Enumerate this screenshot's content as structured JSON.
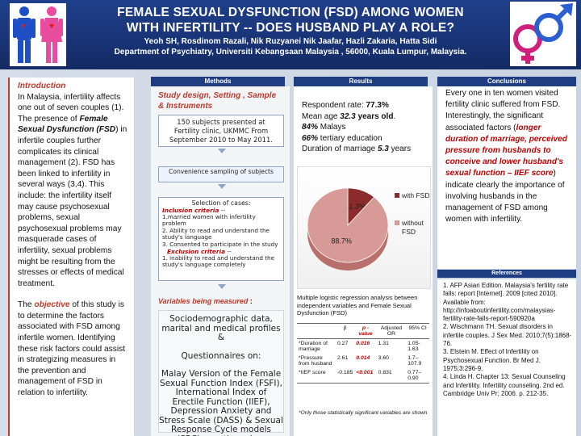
{
  "header": {
    "title_line1": "FEMALE  SEXUAL  DYSFUNCTION (FSD) AMONG  WOMEN",
    "title_line2": "WITH  INFERTILITY  -- DOES HUSBAND PLAY A  ROLE?",
    "authors": "Yeoh SH,  Rosdinom Razali, Nik Ruzyanei Nik Jaafar, Hazli Zakaria,  Hatta Sidi",
    "affiliation": "Department of Psychiatry, Universiti Kebangsaan Malaysia , 56000, Kuala Lumpur, Malaysia."
  },
  "intro": {
    "heading": "Introduction",
    "p1_a": "In Malaysia, infertility affects one out of seven couples (1). The presence of ",
    "p1_em": "Female Sexual Dysfunction (FSD",
    "p1_b": ") in infertile couples further complicates its clinical management (2). FSD has been linked to infertility in several ways (3,4). This include: the infertility itself may cause psychosexual problems, sexual psychosexual problems may masquerade cases of infertility, sexual problems might be resulting from the stresses or effects of medical treatment.",
    "p2_a": "The ",
    "p2_obj": "objective",
    "p2_b": " of this study is to determine the factors associated with FSD among infertile women. Identifying these risk factors could assist in strategizing measures in the prevention and management of FSD in relation to infertility."
  },
  "methods": {
    "head": "Methods",
    "title": "Study design, Setting , Sample & Instruments",
    "box1": "150  subjects presented at  Fertility clinic, UKMMC From September 2010 to May 2011.",
    "box2": "Convenience sampling of subjects",
    "box3_title": "Selection of cases:",
    "inclusion_label": "Inclusion criteria",
    "inclusion_suffix": " --",
    "inc1": "1.married women with infertility problem",
    "inc2": "2. Ability to read and understand the study's language",
    "inc3": "3. Consented to participate in the study",
    "exclusion_label": "Exclusion  criteria",
    "exclusion_suffix": " --",
    "exc1": "1. inability to read and understand the study's language completely",
    "vm_title": "Variables being measured",
    "vm_colon": " :",
    "vm1": "Sociodemographic data, marital and medical profiles &",
    "vm2": "Questionnaires on:",
    "vm3": "Malay Version of the Female Sexual Function Index (FSFI),   International Index of Erectile Function (IIEF), Depression Anxiety and Stress Scale (DASS) & Sexual Response Cycle models (SRC) questionnaires"
  },
  "results": {
    "head": "Results",
    "rate_label": "Respondent rate: ",
    "rate_val": "77.3%",
    "age_label": "Mean age ",
    "age_val": "32.3",
    "age_unit": " years old",
    "age_end": ".",
    "malays_val": "84%",
    "malays_label": " Malays",
    "tertiary_val": "66%",
    "tertiary_label": " tertiary education",
    "marriage_label": "Duration of marriage ",
    "marriage_val": "5.3",
    "marriage_unit": " years",
    "text": "Multiple logistic regression analysis between independent variables and Female Sexual Dysfunction (FSD)",
    "table": {
      "headers": [
        "",
        "β",
        "p -value",
        "Adjusted OR",
        "95% CI"
      ],
      "rows": [
        [
          "*Duration of marriage",
          "0.27",
          "0.016",
          "1.31",
          "1.05-1.63"
        ],
        [
          "*Pressure from husband",
          "2.61",
          "0.014",
          "3.60",
          "1.7– 107.9"
        ],
        [
          "*IIEF score",
          "-0.185",
          "<0.001",
          "0.831",
          "0.77– 0.90"
        ]
      ]
    },
    "note": "*Only those statistically significant  variables are shown"
  },
  "chart_data": {
    "type": "pie",
    "categories": [
      "with FSD",
      "without FSD"
    ],
    "values": [
      11.3,
      88.7
    ],
    "labels": [
      "11.3%",
      "88.7%"
    ],
    "colors": [
      "#8b2b2b",
      "#d79a96"
    ],
    "legend_placement": "right"
  },
  "conclusions": {
    "head": "Conclusions",
    "t1": "Every one in ten women visited fertility clinic suffered from FSD. Interestingly, the significant associated factors (",
    "t2": "longer duration of marriage",
    "t3": ", ",
    "t4": "perceived pressure from husbands to conceive and lower husband's sexual function – IIEF score",
    "t5": ") indicate clearly the importance of involving husbands in the management of FSD among women with infertility."
  },
  "references": {
    "head": "References",
    "items": [
      "1. AFP Asian Edition. Malaysia's fertility rate falls: report [Internet]. 2009 [cited 2010]. Available from: http://infoaboutinfertility.com/malaysias-fertility-rate-falls-report-590920a",
      "2. Wischmann TH. Sexual disorders in infertile couples. J Sex Med. 2010;7(5):1868-76.",
      "3. Elstein M. Effect of Infertility on Psychosexual Function. Br Med J. 1975;3:296-9.",
      "4. Linda H. Chapter 13: Sexual Counseling and Infertility. Infertility counseling. 2nd ed. Cambridge Univ Pr; 2006. p. 212-35."
    ]
  }
}
